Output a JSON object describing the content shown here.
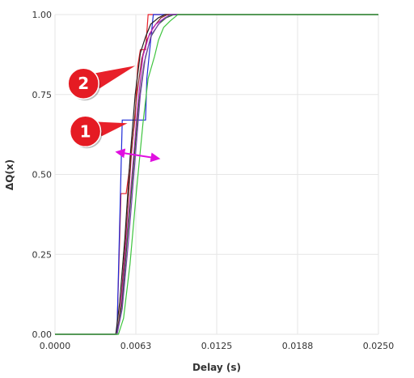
{
  "chart_data": {
    "type": "line",
    "xlabel": "Delay (s)",
    "ylabel": "ΔQ(x)",
    "xlim": [
      0,
      0.025
    ],
    "ylim": [
      0,
      1
    ],
    "x_ticks": [
      "0.0000",
      "0.0063",
      "0.0125",
      "0.0188",
      "0.0250"
    ],
    "x_tick_values": [
      0,
      0.00625,
      0.0125,
      0.01875,
      0.025
    ],
    "y_ticks": [
      "0.00",
      "0.25",
      "0.50",
      "0.75",
      "1.00"
    ],
    "y_tick_values": [
      0,
      0.25,
      0.5,
      0.75,
      1.0
    ],
    "grid": true,
    "series": [
      {
        "color": "#e8202a",
        "points": [
          [
            0,
            0
          ],
          [
            0.0047,
            0
          ],
          [
            0.0048,
            0.02
          ],
          [
            0.0051,
            0.44
          ],
          [
            0.0055,
            0.44
          ],
          [
            0.0057,
            0.5
          ],
          [
            0.0062,
            0.68
          ],
          [
            0.0064,
            0.84
          ],
          [
            0.0066,
            0.89
          ],
          [
            0.007,
            0.89
          ],
          [
            0.0072,
            1.0
          ],
          [
            0.025,
            1.0
          ]
        ]
      },
      {
        "color": "#1f2bd8",
        "points": [
          [
            0,
            0
          ],
          [
            0.0047,
            0
          ],
          [
            0.0048,
            0.02
          ],
          [
            0.0052,
            0.67
          ],
          [
            0.007,
            0.67
          ],
          [
            0.0071,
            0.8
          ],
          [
            0.0076,
            1.0
          ],
          [
            0.025,
            1.0
          ]
        ]
      },
      {
        "color": "#222222",
        "points": [
          [
            0,
            0
          ],
          [
            0.0047,
            0
          ],
          [
            0.005,
            0.1
          ],
          [
            0.0054,
            0.3
          ],
          [
            0.0058,
            0.55
          ],
          [
            0.0062,
            0.75
          ],
          [
            0.0066,
            0.88
          ],
          [
            0.007,
            0.93
          ],
          [
            0.0074,
            0.97
          ],
          [
            0.008,
            0.99
          ],
          [
            0.0085,
            1.0
          ],
          [
            0.025,
            1.0
          ]
        ]
      },
      {
        "color": "#8a2a2a",
        "points": [
          [
            0,
            0
          ],
          [
            0.0048,
            0
          ],
          [
            0.0051,
            0.1
          ],
          [
            0.0055,
            0.32
          ],
          [
            0.0059,
            0.56
          ],
          [
            0.0063,
            0.74
          ],
          [
            0.0067,
            0.86
          ],
          [
            0.0071,
            0.92
          ],
          [
            0.0076,
            0.96
          ],
          [
            0.0082,
            0.99
          ],
          [
            0.0087,
            1.0
          ],
          [
            0.025,
            1.0
          ]
        ]
      },
      {
        "color": "#c020c0",
        "points": [
          [
            0,
            0
          ],
          [
            0.0048,
            0
          ],
          [
            0.0051,
            0.08
          ],
          [
            0.0055,
            0.28
          ],
          [
            0.006,
            0.52
          ],
          [
            0.0064,
            0.72
          ],
          [
            0.0068,
            0.87
          ],
          [
            0.0073,
            0.94
          ],
          [
            0.0078,
            0.97
          ],
          [
            0.0085,
            0.99
          ],
          [
            0.009,
            1.0
          ],
          [
            0.025,
            1.0
          ]
        ]
      },
      {
        "color": "#2a6a2a",
        "points": [
          [
            0,
            0
          ],
          [
            0.0048,
            0
          ],
          [
            0.0052,
            0.1
          ],
          [
            0.0056,
            0.3
          ],
          [
            0.0061,
            0.54
          ],
          [
            0.0065,
            0.73
          ],
          [
            0.0069,
            0.85
          ],
          [
            0.0074,
            0.93
          ],
          [
            0.008,
            0.97
          ],
          [
            0.0086,
            0.99
          ],
          [
            0.0092,
            1.0
          ],
          [
            0.025,
            1.0
          ]
        ]
      },
      {
        "color": "#7a3fb0",
        "points": [
          [
            0,
            0
          ],
          [
            0.0048,
            0
          ],
          [
            0.0052,
            0.08
          ],
          [
            0.0057,
            0.3
          ],
          [
            0.0062,
            0.55
          ],
          [
            0.0066,
            0.75
          ],
          [
            0.007,
            0.87
          ],
          [
            0.0075,
            0.94
          ],
          [
            0.0082,
            0.98
          ],
          [
            0.0089,
            1.0
          ],
          [
            0.025,
            1.0
          ]
        ]
      },
      {
        "color": "#3ec43e",
        "points": [
          [
            0,
            0
          ],
          [
            0.0049,
            0
          ],
          [
            0.0053,
            0.05
          ],
          [
            0.0058,
            0.22
          ],
          [
            0.0063,
            0.45
          ],
          [
            0.0068,
            0.66
          ],
          [
            0.0072,
            0.8
          ],
          [
            0.0077,
            0.87
          ],
          [
            0.008,
            0.92
          ],
          [
            0.0084,
            0.96
          ],
          [
            0.0089,
            0.98
          ],
          [
            0.0095,
            1.0
          ],
          [
            0.025,
            1.0
          ]
        ]
      }
    ],
    "annotations": [
      {
        "label": "1",
        "value_x": 0.0056,
        "value_y": 0.66,
        "arrow_color": "#e8202a"
      },
      {
        "label": "2",
        "value_x": 0.0062,
        "value_y": 0.84,
        "arrow_color": "#e8202a"
      }
    ],
    "double_arrow": {
      "color": "#e010e0",
      "x_from": 0.0048,
      "x_to": 0.008,
      "y": 0.57
    }
  }
}
